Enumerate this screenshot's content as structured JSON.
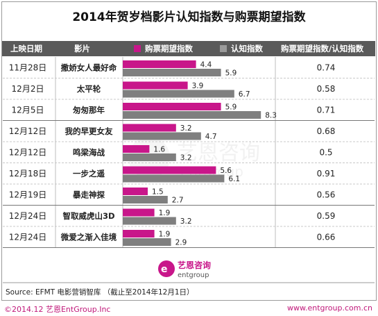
{
  "chart_data": {
    "type": "bar",
    "title": "2014年贺岁档影片认知指数与购票期望指数",
    "headers": {
      "date": "上映日期",
      "film": "影片",
      "ratio": "购票期望指数/认知指数"
    },
    "series": [
      {
        "name": "购票期望指数",
        "color": "#c8168a",
        "values": [
          4.4,
          3.9,
          5.9,
          3.2,
          1.6,
          5.6,
          1.5,
          1.9,
          1.9
        ]
      },
      {
        "name": "认知指数",
        "color": "#7f7f7f",
        "values": [
          5.9,
          6.7,
          8.3,
          4.7,
          3.2,
          6.1,
          2.7,
          3.2,
          2.9
        ]
      }
    ],
    "rows": [
      {
        "date": "11月28日",
        "film": "撒娇女人最好命",
        "ratio": "0.74"
      },
      {
        "date": "12月2日",
        "film": "太平轮",
        "ratio": "0.58"
      },
      {
        "date": "12月5日",
        "film": "匆匆那年",
        "ratio": "0.71"
      },
      {
        "date": "12月12日",
        "film": "我的早更女友",
        "ratio": "0.68"
      },
      {
        "date": "12月12日",
        "film": "鸣梁海战",
        "ratio": "0.5"
      },
      {
        "date": "12月18日",
        "film": "一步之遥",
        "ratio": "0.91"
      },
      {
        "date": "12月19日",
        "film": "暴走神探",
        "ratio": "0.56"
      },
      {
        "date": "12月24日",
        "film": "智取威虎山3D",
        "ratio": "0.59"
      },
      {
        "date": "12月24日",
        "film": "微爱之渐入佳境",
        "ratio": "0.66"
      }
    ],
    "value_labels": [
      [
        "4.4",
        "5.9"
      ],
      [
        "3.9",
        "6.7"
      ],
      [
        "5.9",
        "8.3"
      ],
      [
        "3.2",
        "4.7"
      ],
      [
        "1.6",
        "3.2"
      ],
      [
        "5.6",
        "6.1"
      ],
      [
        "1.5",
        "2.7"
      ],
      [
        "1.9",
        "3.2"
      ],
      [
        "1.9",
        "2.9"
      ]
    ],
    "xlim": [
      0,
      9
    ]
  },
  "source": "Source: EFMT 电影营销智库 （截止至2014年12月1日）",
  "copyright": "©2014.12 艺恩EntGroup.Inc",
  "website": "www.entgroup.com.cn",
  "logo": {
    "cn": "艺恩咨询",
    "en": "entgroup"
  },
  "watermark": {
    "cn": "艺恩咨询",
    "en": "entgroup"
  }
}
